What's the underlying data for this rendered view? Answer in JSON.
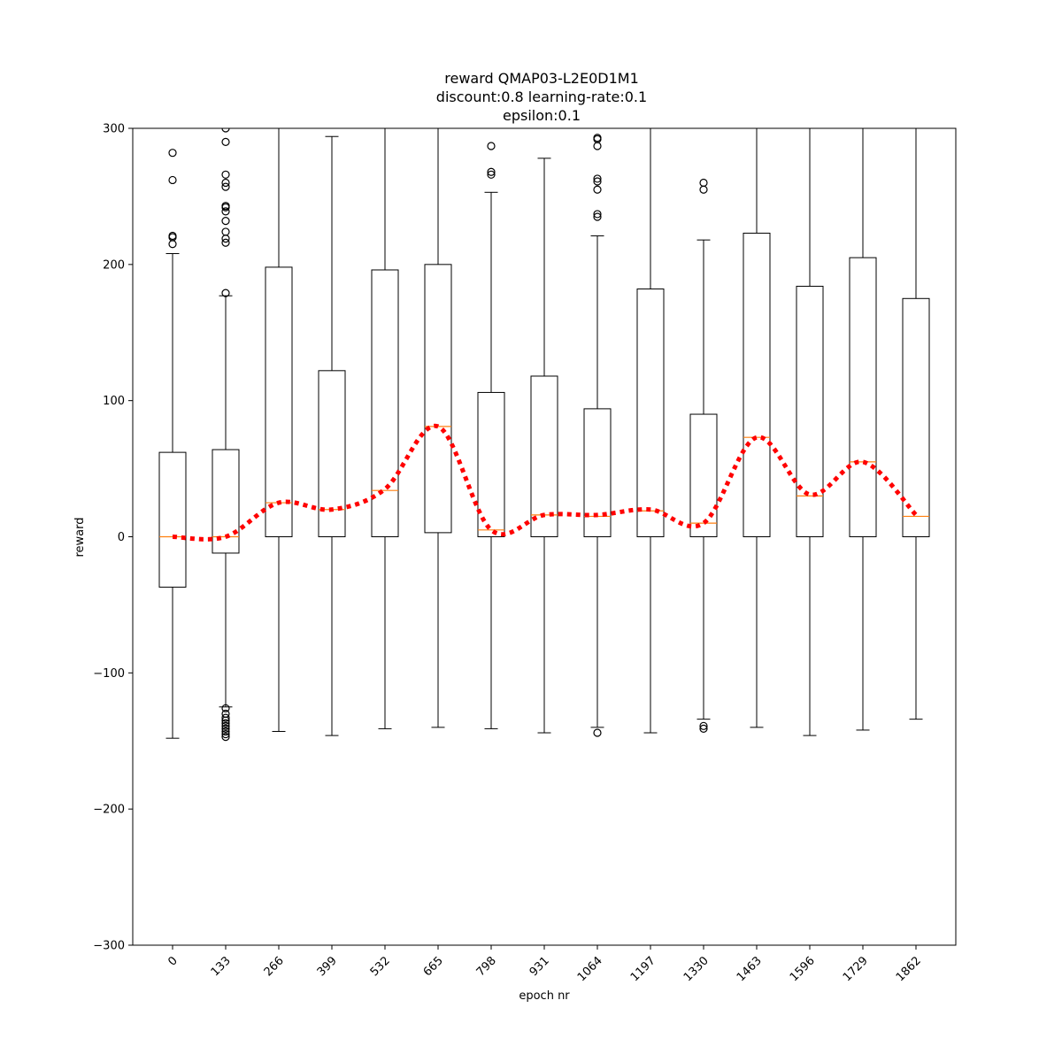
{
  "chart_data": {
    "type": "box",
    "title": [
      "reward QMAP03-L2E0D1M1",
      "discount:0.8 learning-rate:0.1",
      "epsilon:0.1"
    ],
    "xlabel": "epoch nr",
    "ylabel": "reward",
    "ylim": [
      -300,
      300
    ],
    "yticks": [
      -300,
      -200,
      -100,
      0,
      100,
      200,
      300
    ],
    "ytick_labels": [
      "−300",
      "−200",
      "−100",
      "0",
      "100",
      "200",
      "300"
    ],
    "grid": false,
    "colors": {
      "box": "#000000",
      "median": "#ff7f0e",
      "mean_line": "#ff0000"
    },
    "categories": [
      "0",
      "133",
      "266",
      "399",
      "532",
      "665",
      "798",
      "931",
      "1064",
      "1197",
      "1330",
      "1463",
      "1596",
      "1729",
      "1862"
    ],
    "boxes": [
      {
        "q1": -37,
        "median": 0,
        "q3": 62,
        "whisker_low": -148,
        "whisker_high": 208,
        "fliers": [
          282,
          262,
          221,
          220,
          215
        ]
      },
      {
        "q1": -12,
        "median": 0,
        "q3": 64,
        "whisker_low": -125,
        "whisker_high": 177,
        "fliers": [
          300,
          290,
          266,
          260,
          257,
          243,
          242,
          239,
          232,
          224,
          219,
          216,
          179,
          -126,
          -130,
          -133,
          -135,
          -137,
          -139,
          -141,
          -143,
          -145,
          -147
        ]
      },
      {
        "q1": 0,
        "median": 25,
        "q3": 198,
        "whisker_low": -143,
        "whisker_high": 300,
        "fliers": []
      },
      {
        "q1": 0,
        "median": 20,
        "q3": 122,
        "whisker_low": -146,
        "whisker_high": 294,
        "fliers": []
      },
      {
        "q1": 0,
        "median": 34,
        "q3": 196,
        "whisker_low": -141,
        "whisker_high": 300,
        "fliers": []
      },
      {
        "q1": 3,
        "median": 81,
        "q3": 200,
        "whisker_low": -140,
        "whisker_high": 300,
        "fliers": []
      },
      {
        "q1": 0,
        "median": 5,
        "q3": 106,
        "whisker_low": -141,
        "whisker_high": 253,
        "fliers": [
          287,
          268,
          266
        ]
      },
      {
        "q1": 0,
        "median": 16,
        "q3": 118,
        "whisker_low": -144,
        "whisker_high": 278,
        "fliers": []
      },
      {
        "q1": 0,
        "median": 15,
        "q3": 94,
        "whisker_low": -140,
        "whisker_high": 221,
        "fliers": [
          293,
          292,
          287,
          263,
          261,
          255,
          237,
          235,
          -144
        ]
      },
      {
        "q1": 0,
        "median": 19,
        "q3": 182,
        "whisker_low": -144,
        "whisker_high": 300,
        "fliers": []
      },
      {
        "q1": 0,
        "median": 10,
        "q3": 90,
        "whisker_low": -134,
        "whisker_high": 218,
        "fliers": [
          260,
          255,
          -139,
          -141
        ]
      },
      {
        "q1": 0,
        "median": 73,
        "q3": 223,
        "whisker_low": -140,
        "whisker_high": 300,
        "fliers": []
      },
      {
        "q1": 0,
        "median": 30,
        "q3": 184,
        "whisker_low": -146,
        "whisker_high": 300,
        "fliers": []
      },
      {
        "q1": 0,
        "median": 55,
        "q3": 205,
        "whisker_low": -142,
        "whisker_high": 300,
        "fliers": []
      },
      {
        "q1": 0,
        "median": 15,
        "q3": 175,
        "whisker_low": -134,
        "whisker_high": 300,
        "fliers": []
      }
    ],
    "mean_line": [
      0,
      0,
      25,
      20,
      35,
      81,
      5,
      16,
      16,
      20,
      10,
      73,
      31,
      55,
      16
    ]
  }
}
